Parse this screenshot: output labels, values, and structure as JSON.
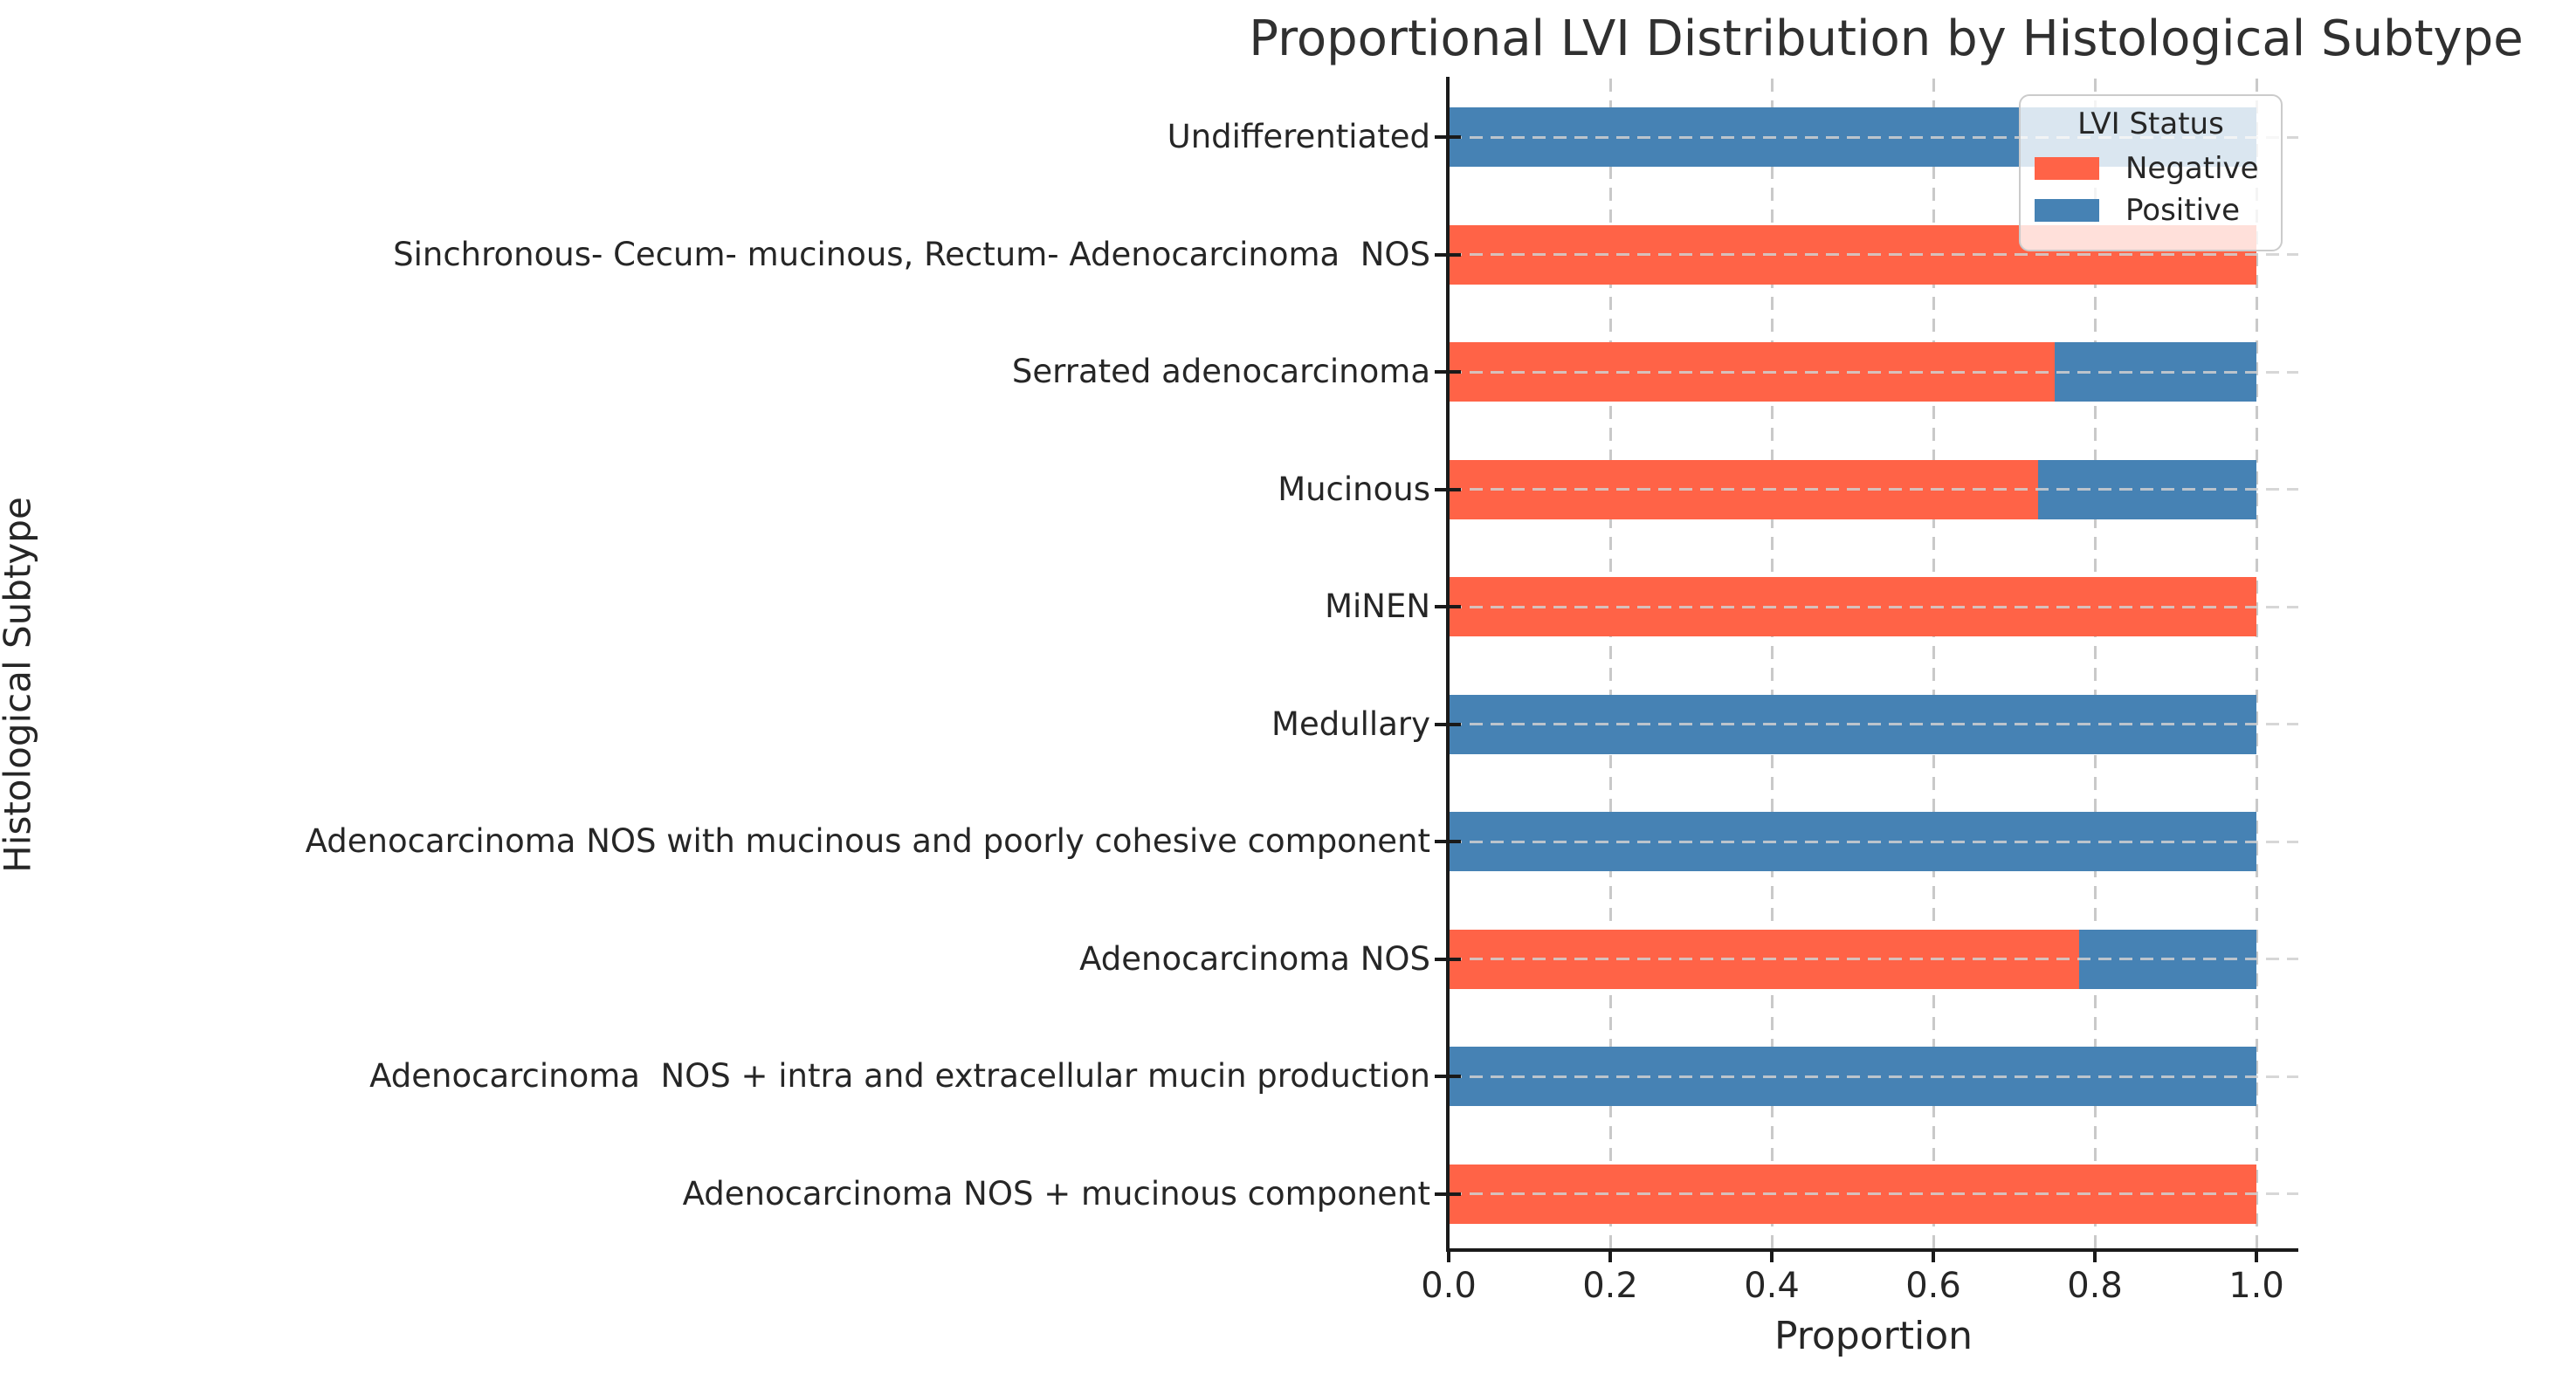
{
  "chart_data": {
    "type": "bar",
    "orientation": "horizontal",
    "stacked": true,
    "title": "Proportional LVI Distribution by Histological Subtype",
    "xlabel": "Proportion",
    "ylabel": "Histological Subtype",
    "xlim": [
      0,
      1.05
    ],
    "xticks": [
      0.0,
      0.2,
      0.4,
      0.6,
      0.8,
      1.0
    ],
    "xtick_labels": [
      "0.0",
      "0.2",
      "0.4",
      "0.6",
      "0.8",
      "1.0"
    ],
    "grid": "dashed, both axes",
    "categories": [
      "Undifferentiated",
      "Sinchronous- Cecum- mucinous, Rectum- Adenocarcinoma  NOS",
      "Serrated adenocarcinoma",
      "Mucinous",
      "MiNEN",
      "Medullary",
      "Adenocarcinoma NOS with mucinous and poorly cohesive component",
      "Adenocarcinoma NOS",
      "Adenocarcinoma  NOS + intra and extracellular mucin production",
      "Adenocarcinoma NOS + mucinous component"
    ],
    "series": [
      {
        "name": "Negative",
        "color": "#FF6347",
        "values": [
          0,
          1.0,
          0.75,
          0.73,
          1.0,
          0,
          0,
          0.78,
          0,
          1.0
        ]
      },
      {
        "name": "Positive",
        "color": "#4682B4",
        "values": [
          1.0,
          0,
          0.25,
          0.27,
          0,
          1.0,
          1.0,
          0.22,
          1.0,
          0
        ]
      }
    ],
    "legend": {
      "title": "LVI Status",
      "position": "upper right",
      "entries": [
        {
          "label": "Negative",
          "color": "#FF6347"
        },
        {
          "label": "Positive",
          "color": "#4682B4"
        }
      ]
    }
  }
}
